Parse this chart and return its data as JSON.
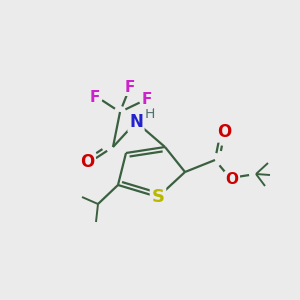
{
  "background_color": "#ebebeb",
  "figsize": [
    3.0,
    3.0
  ],
  "dpi": 100,
  "bond_color": "#3a6040",
  "bond_width": 1.6,
  "atom_colors": {
    "S": "#b8b800",
    "N": "#2222cc",
    "H": "#507070",
    "O": "#cc0000",
    "F": "#cc22cc",
    "C": "#3a6040"
  }
}
